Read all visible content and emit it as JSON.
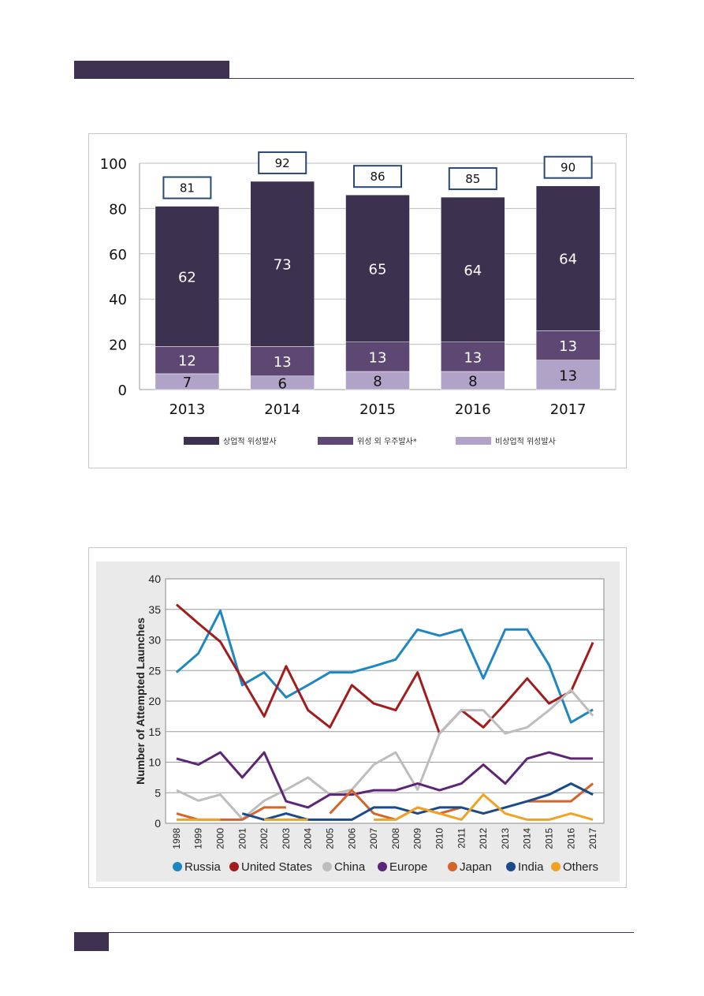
{
  "chart_data": [
    {
      "type": "bar",
      "stacked": true,
      "categories": [
        "2013",
        "2014",
        "2015",
        "2016",
        "2017"
      ],
      "totals": [
        81,
        92,
        86,
        85,
        90
      ],
      "yticks": [
        "0",
        "20",
        "40",
        "60",
        "80",
        "100"
      ],
      "ylim": [
        0,
        100
      ],
      "series": [
        {
          "name": "비상업적 위성발사",
          "color": "#b1a3c8",
          "values": [
            7,
            6,
            8,
            8,
            13
          ]
        },
        {
          "name": "위성 외 우주발사*",
          "color": "#5d4873",
          "values": [
            12,
            13,
            13,
            13,
            13
          ]
        },
        {
          "name": "상업적 위성발사",
          "color": "#3d3150",
          "values": [
            62,
            73,
            65,
            64,
            64
          ]
        }
      ],
      "legend_order": [
        "상업적 위성발사",
        "위성 외 우주발사*",
        "비상업적 위성발사"
      ],
      "grid": true
    },
    {
      "type": "line",
      "ylabel": "Number of Attempted Launches",
      "ylim": [
        0,
        40
      ],
      "yticks": [
        "0",
        "5",
        "10",
        "15",
        "20",
        "25",
        "30",
        "35",
        "40"
      ],
      "x": [
        "1998",
        "1999",
        "2000",
        "2001",
        "2002",
        "2003",
        "2004",
        "2005",
        "2006",
        "2007",
        "2008",
        "2009",
        "2010",
        "2011",
        "2012",
        "2013",
        "2014",
        "2015",
        "2016",
        "2017"
      ],
      "series": [
        {
          "name": "Russia",
          "color": "#1f86c4",
          "values": [
            24.7,
            27.8,
            34.8,
            22.6,
            24.7,
            20.6,
            22.6,
            24.7,
            24.7,
            25.7,
            26.8,
            31.7,
            30.7,
            31.7,
            23.7,
            31.7,
            31.7,
            25.9,
            16.5,
            18.6
          ]
        },
        {
          "name": "United States",
          "color": "#a11c1c",
          "values": [
            35.8,
            32.7,
            29.7,
            23.6,
            17.5,
            25.7,
            18.5,
            15.7,
            22.6,
            19.6,
            18.5,
            24.7,
            14.7,
            18.5,
            15.7,
            19.6,
            23.7,
            19.6,
            21.6,
            29.6
          ]
        },
        {
          "name": "China",
          "color": "#bdbdbd",
          "values": [
            5.4,
            3.7,
            4.7,
            0.7,
            3.7,
            5.5,
            7.5,
            4.7,
            5.5,
            9.6,
            11.6,
            5.5,
            14.7,
            18.5,
            18.5,
            14.7,
            15.7,
            18.5,
            21.8,
            17.6
          ]
        },
        {
          "name": "Europe",
          "color": "#5e2577",
          "values": [
            10.6,
            9.6,
            11.6,
            7.5,
            11.6,
            3.6,
            2.6,
            4.7,
            4.7,
            5.4,
            5.4,
            6.5,
            5.4,
            6.5,
            9.6,
            6.5,
            10.6,
            11.6,
            10.6,
            10.6
          ]
        },
        {
          "name": "Japan",
          "color": "#d4642a",
          "values": [
            1.6,
            0.6,
            0.6,
            0.6,
            2.6,
            2.6,
            null,
            1.6,
            5.4,
            1.6,
            0.6,
            2.6,
            1.6,
            2.6,
            null,
            null,
            3.6,
            3.6,
            3.6,
            6.5
          ]
        },
        {
          "name": "India",
          "color": "#1b4a8a",
          "values": [
            null,
            null,
            null,
            1.6,
            0.6,
            1.6,
            0.6,
            0.6,
            0.6,
            2.6,
            2.6,
            1.6,
            2.6,
            2.6,
            1.6,
            2.6,
            3.6,
            4.7,
            6.5,
            4.7
          ]
        },
        {
          "name": "Others",
          "color": "#f0a322",
          "values": [
            0.6,
            0.6,
            0.6,
            null,
            0.6,
            0.6,
            0.6,
            null,
            null,
            0.6,
            0.6,
            2.6,
            1.6,
            0.6,
            4.7,
            1.6,
            0.6,
            0.6,
            1.6,
            0.6
          ]
        }
      ]
    }
  ]
}
